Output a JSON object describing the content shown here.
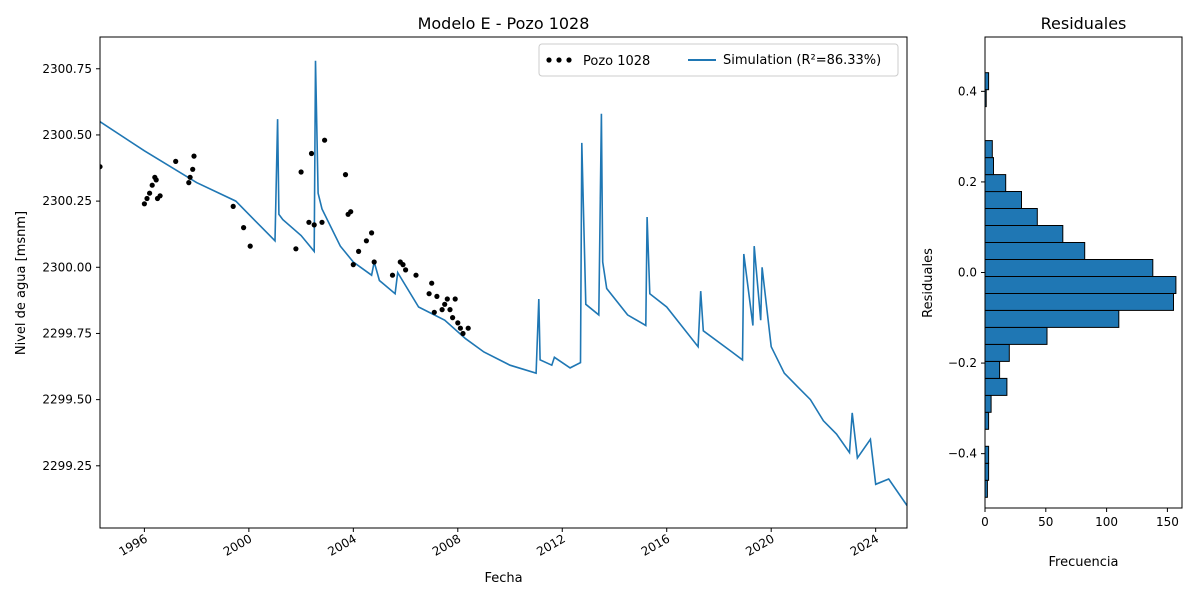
{
  "chart_data": [
    {
      "type": "line",
      "title": "Modelo E - Pozo 1028",
      "xlabel": "Fecha",
      "ylabel": "Nivel de agua [msnm]",
      "xlim": [
        1994.3,
        2025.2
      ],
      "ylim": [
        2299.015,
        2300.87
      ],
      "x_ticks": [
        1996,
        2000,
        2004,
        2008,
        2012,
        2016,
        2020,
        2024
      ],
      "x_tick_labels": [
        "1996",
        "2000",
        "2004",
        "2008",
        "2012",
        "2016",
        "2020",
        "2024"
      ],
      "y_ticks": [
        2299.25,
        2299.5,
        2299.75,
        2300.0,
        2300.25,
        2300.5,
        2300.75
      ],
      "y_tick_labels": [
        "2299.25",
        "2299.50",
        "2299.75",
        "2300.00",
        "2300.25",
        "2300.50",
        "2300.75"
      ],
      "grid": false,
      "legend_position": "top-right",
      "colors": {
        "simulation": "#1f77b4",
        "observed": "#000000"
      },
      "series": [
        {
          "name": "Pozo 1028",
          "kind": "scatter",
          "x": [
            1994.3,
            1996.0,
            1996.1,
            1996.2,
            1996.3,
            1996.4,
            1996.45,
            1996.5,
            1996.6,
            1997.2,
            1997.7,
            1997.75,
            1997.85,
            1997.9,
            1999.4,
            1999.8,
            2000.05,
            2001.8,
            2002.0,
            2002.3,
            2002.4,
            2002.5,
            2002.8,
            2002.9,
            2003.7,
            2003.8,
            2003.9,
            2004.0,
            2004.2,
            2004.5,
            2004.7,
            2004.8,
            2005.5,
            2005.8,
            2005.9,
            2006.0,
            2006.4,
            2006.9,
            2007.0,
            2007.1,
            2007.2,
            2007.4,
            2007.5,
            2007.6,
            2007.7,
            2007.8,
            2007.9,
            2008.0,
            2008.1,
            2008.2,
            2008.4
          ],
          "y": [
            2300.38,
            2300.24,
            2300.26,
            2300.28,
            2300.31,
            2300.34,
            2300.33,
            2300.26,
            2300.27,
            2300.4,
            2300.32,
            2300.34,
            2300.37,
            2300.42,
            2300.23,
            2300.15,
            2300.08,
            2300.07,
            2300.36,
            2300.17,
            2300.43,
            2300.16,
            2300.17,
            2300.48,
            2300.35,
            2300.2,
            2300.21,
            2300.01,
            2300.06,
            2300.1,
            2300.13,
            2300.02,
            2299.97,
            2300.02,
            2300.01,
            2299.99,
            2299.97,
            2299.9,
            2299.94,
            2299.83,
            2299.89,
            2299.84,
            2299.86,
            2299.88,
            2299.84,
            2299.81,
            2299.88,
            2299.79,
            2299.77,
            2299.75,
            2299.77
          ]
        },
        {
          "name": "Simulation ($R^2$=86.33%)",
          "kind": "line",
          "x": [
            1994.3,
            1996.0,
            1998.0,
            1999.5,
            2000.5,
            2001.0,
            2001.1,
            2001.15,
            2001.3,
            2002.0,
            2002.5,
            2002.55,
            2002.65,
            2002.8,
            2003.5,
            2004.0,
            2004.7,
            2004.8,
            2005.0,
            2005.6,
            2005.7,
            2006.5,
            2007.5,
            2008.3,
            2009.0,
            2010.0,
            2011.0,
            2011.1,
            2011.15,
            2011.6,
            2011.7,
            2012.3,
            2012.7,
            2012.75,
            2012.9,
            2013.4,
            2013.5,
            2013.55,
            2013.7,
            2014.5,
            2015.2,
            2015.25,
            2015.35,
            2016.0,
            2017.2,
            2017.3,
            2017.4,
            2018.5,
            2018.9,
            2018.95,
            2019.3,
            2019.35,
            2019.6,
            2019.65,
            2020.0,
            2020.5,
            2021.0,
            2021.5,
            2022.0,
            2022.5,
            2023.0,
            2023.1,
            2023.3,
            2023.8,
            2024.0,
            2024.5,
            2025.2
          ],
          "y": [
            2300.55,
            2300.44,
            2300.32,
            2300.25,
            2300.15,
            2300.1,
            2300.56,
            2300.2,
            2300.18,
            2300.12,
            2300.06,
            2300.78,
            2300.28,
            2300.22,
            2300.08,
            2300.02,
            2299.97,
            2300.02,
            2299.95,
            2299.9,
            2299.98,
            2299.85,
            2299.8,
            2299.73,
            2299.68,
            2299.63,
            2299.6,
            2299.88,
            2299.65,
            2299.63,
            2299.66,
            2299.62,
            2299.64,
            2300.47,
            2299.86,
            2299.82,
            2300.58,
            2300.02,
            2299.92,
            2299.82,
            2299.78,
            2300.19,
            2299.9,
            2299.85,
            2299.7,
            2299.91,
            2299.76,
            2299.68,
            2299.65,
            2300.05,
            2299.78,
            2300.08,
            2299.8,
            2300.0,
            2299.7,
            2299.6,
            2299.55,
            2299.5,
            2299.42,
            2299.37,
            2299.3,
            2299.45,
            2299.28,
            2299.35,
            2299.18,
            2299.2,
            2299.1
          ]
        }
      ]
    },
    {
      "type": "bar",
      "orientation": "horizontal",
      "title": "Residuales",
      "xlabel": "Frecuencia",
      "ylabel": "Residuales",
      "xlim": [
        0,
        162
      ],
      "ylim": [
        -0.52,
        0.52
      ],
      "x_ticks": [
        0,
        50,
        100,
        150
      ],
      "x_tick_labels": [
        "0",
        "50",
        "100",
        "150"
      ],
      "y_ticks": [
        -0.4,
        -0.2,
        0.0,
        0.2,
        0.4
      ],
      "y_tick_labels": [
        "−0.4",
        "−0.2",
        "0.0",
        "0.2",
        "0.4"
      ],
      "grid": false,
      "colors": {
        "bar": "#1f77b4",
        "edge": "#000000"
      },
      "bin_width": 0.0375,
      "bin_centers": [
        -0.4775,
        -0.44,
        -0.4025,
        -0.365,
        -0.3275,
        -0.29,
        -0.2525,
        -0.215,
        -0.1775,
        -0.14,
        -0.1025,
        -0.065,
        -0.0275,
        0.01,
        0.0475,
        0.085,
        0.1225,
        0.16,
        0.1975,
        0.235,
        0.2725,
        0.31,
        0.3475,
        0.385,
        0.4225
      ],
      "values": [
        2,
        3,
        3,
        0,
        3,
        5,
        18,
        12,
        20,
        51,
        110,
        155,
        157,
        138,
        82,
        64,
        43,
        30,
        17,
        7,
        6,
        0,
        0,
        1,
        3
      ]
    }
  ]
}
